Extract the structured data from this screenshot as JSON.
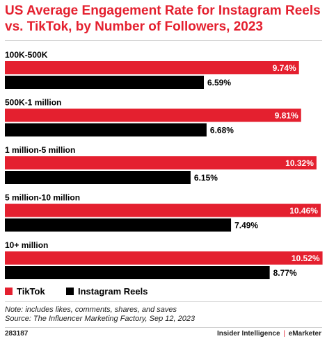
{
  "chart_data": {
    "type": "bar",
    "orientation": "horizontal",
    "title": "US Average Engagement Rate for Instagram Reels vs. TikTok, by Number of Followers, 2023",
    "categories": [
      "100K-500K",
      "500K-1 million",
      "1 million-5 million",
      "5 million-10 million",
      "10+ million"
    ],
    "series": [
      {
        "name": "TikTok",
        "color": "#e4202f",
        "values": [
          9.74,
          9.81,
          10.32,
          10.46,
          10.52
        ],
        "labels": [
          "9.74%",
          "9.81%",
          "10.32%",
          "10.46%",
          "10.52%"
        ]
      },
      {
        "name": "Instagram Reels",
        "color": "#000000",
        "values": [
          6.59,
          6.68,
          6.15,
          7.49,
          8.77
        ],
        "labels": [
          "6.59%",
          "6.68%",
          "6.15%",
          "7.49%",
          "8.77%"
        ]
      }
    ],
    "legend_position": "bottom-left",
    "grid": false
  },
  "footer": {
    "note": "Note: includes likes, comments, shares, and saves",
    "source": "Source: The Influencer Marketing Factory, Sep 12, 2023",
    "chart_id": "283187",
    "brand_left": "Insider Intelligence",
    "brand_separator": "|",
    "brand_right": "eMarketer"
  }
}
